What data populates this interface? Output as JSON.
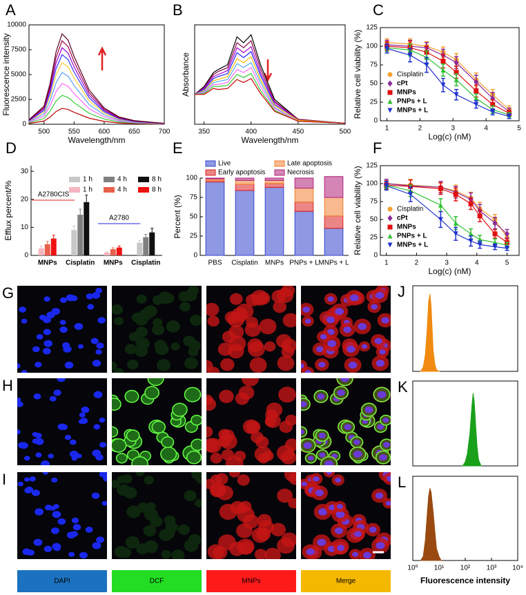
{
  "chart_data": [
    {
      "panel": "A",
      "type": "line",
      "x_label": "Wavelength/nm",
      "y_label": "Fluorescence intensity",
      "x": [
        475,
        500,
        510,
        520,
        530,
        540,
        550,
        575,
        600,
        625,
        650,
        700
      ],
      "series": [
        {
          "color": "#c00000",
          "values": [
            80,
            320,
            720,
            1280,
            1600,
            1488,
            1200,
            608,
            288,
            128,
            64,
            16
          ]
        },
        {
          "color": "#33cc33",
          "values": [
            145,
            580,
            1305,
            2320,
            2900,
            2697,
            2175,
            1102,
            522,
            232,
            116,
            29
          ]
        },
        {
          "color": "#ff66ff",
          "values": [
            205,
            820,
            1845,
            3280,
            4100,
            3813,
            3075,
            1558,
            738,
            328,
            164,
            41
          ]
        },
        {
          "color": "#5aa0ff",
          "values": [
            260,
            1040,
            2340,
            4160,
            5200,
            4836,
            3900,
            1976,
            936,
            416,
            208,
            52
          ]
        },
        {
          "color": "#ffcc33",
          "values": [
            310,
            1240,
            2790,
            4960,
            6200,
            5766,
            4650,
            2356,
            1116,
            496,
            248,
            62
          ]
        },
        {
          "color": "#3333ff",
          "values": [
            350,
            1400,
            3150,
            5600,
            7000,
            6510,
            5250,
            2660,
            1260,
            560,
            280,
            70
          ]
        },
        {
          "color": "#9900cc",
          "values": [
            385,
            1540,
            3465,
            6160,
            7700,
            7161,
            5775,
            2926,
            1386,
            616,
            308,
            77
          ]
        },
        {
          "color": "#990044",
          "values": [
            420,
            1680,
            3780,
            6720,
            8400,
            7812,
            6300,
            3192,
            1512,
            672,
            336,
            84
          ]
        },
        {
          "color": "#550022",
          "values": [
            455,
            1820,
            4095,
            7280,
            9100,
            8463,
            6825,
            3458,
            1638,
            728,
            364,
            91
          ]
        }
      ],
      "xlim": [
        475,
        700
      ],
      "xticks": [
        500,
        550,
        600,
        650,
        700
      ],
      "ylim": [
        0,
        10000
      ],
      "yticks": [
        0,
        2500,
        5000,
        7500,
        10000
      ]
    },
    {
      "panel": "B",
      "type": "line",
      "x_label": "Wavelength/nm",
      "y_label": "Absorbance",
      "x": [
        340,
        350,
        360,
        365,
        375,
        385,
        392,
        400,
        410,
        425,
        450,
        500
      ],
      "series": [
        {
          "color": "#000000",
          "values": [
            0.3,
            0.38,
            0.52,
            0.55,
            0.6,
            0.88,
            0.82,
            0.9,
            0.6,
            0.25,
            0.05,
            0.01
          ]
        },
        {
          "color": "#880044",
          "values": [
            0.3,
            0.37,
            0.5,
            0.53,
            0.57,
            0.82,
            0.77,
            0.84,
            0.56,
            0.23,
            0.05,
            0.01
          ]
        },
        {
          "color": "#aa00cc",
          "values": [
            0.3,
            0.36,
            0.48,
            0.5,
            0.54,
            0.77,
            0.72,
            0.78,
            0.52,
            0.22,
            0.04,
            0.01
          ]
        },
        {
          "color": "#2222ff",
          "values": [
            0.3,
            0.35,
            0.46,
            0.48,
            0.51,
            0.72,
            0.67,
            0.73,
            0.49,
            0.2,
            0.04,
            0.01
          ]
        },
        {
          "color": "#ffbb00",
          "values": [
            0.3,
            0.34,
            0.44,
            0.45,
            0.48,
            0.66,
            0.62,
            0.68,
            0.45,
            0.19,
            0.04,
            0.01
          ]
        },
        {
          "color": "#55aaff",
          "values": [
            0.3,
            0.33,
            0.42,
            0.43,
            0.45,
            0.61,
            0.57,
            0.62,
            0.42,
            0.17,
            0.03,
            0.01
          ]
        },
        {
          "color": "#ff66ff",
          "values": [
            0.3,
            0.32,
            0.4,
            0.4,
            0.42,
            0.55,
            0.52,
            0.57,
            0.38,
            0.16,
            0.03,
            0.01
          ]
        },
        {
          "color": "#33cc33",
          "values": [
            0.3,
            0.31,
            0.38,
            0.38,
            0.39,
            0.5,
            0.47,
            0.51,
            0.34,
            0.14,
            0.03,
            0.01
          ]
        },
        {
          "color": "#cc0000",
          "values": [
            0.3,
            0.3,
            0.36,
            0.35,
            0.36,
            0.45,
            0.42,
            0.46,
            0.31,
            0.13,
            0.03,
            0.01
          ]
        }
      ],
      "xlim": [
        340,
        500
      ],
      "xticks": [
        350,
        400,
        450,
        500
      ],
      "ylim": [
        0,
        1
      ]
    },
    {
      "panel": "C",
      "type": "scatter",
      "x_label": "Log(c) (nM)",
      "y_label": "Relative cell viability (%)",
      "x": [
        1,
        1.7,
        2.2,
        2.7,
        3.1,
        3.7,
        4.2,
        4.7
      ],
      "series": [
        {
          "name": "Cisplatin",
          "color": "#f5a030",
          "marker": "circle",
          "values": [
            105,
            103,
            100,
            92,
            82,
            55,
            35,
            15
          ],
          "errors": [
            5,
            7,
            6,
            7,
            8,
            9,
            7,
            5
          ]
        },
        {
          "name": "cPt",
          "color": "#8a2a9a",
          "marker": "diamond",
          "values": [
            102,
            100,
            98,
            88,
            78,
            52,
            30,
            12
          ],
          "errors": [
            6,
            8,
            7,
            8,
            8,
            9,
            8,
            5
          ]
        },
        {
          "name": "MNPs",
          "color": "#e01010",
          "marker": "square",
          "values": [
            100,
            98,
            92,
            80,
            65,
            40,
            22,
            10
          ],
          "errors": [
            6,
            9,
            8,
            9,
            8,
            8,
            6,
            4
          ]
        },
        {
          "name": "PNPs + L",
          "color": "#30c030",
          "marker": "triangle",
          "values": [
            98,
            95,
            85,
            68,
            55,
            30,
            15,
            8
          ],
          "errors": [
            5,
            8,
            9,
            8,
            8,
            6,
            5,
            3
          ]
        },
        {
          "name": "MNPs + L",
          "color": "#2030d0",
          "marker": "triangle-down",
          "values": [
            97,
            88,
            75,
            48,
            35,
            22,
            12,
            6
          ],
          "errors": [
            6,
            9,
            10,
            9,
            7,
            5,
            4,
            3
          ]
        }
      ],
      "xlim": [
        0.8,
        5
      ],
      "xticks": [
        1,
        2,
        3,
        4,
        5
      ],
      "ylim": [
        0,
        125
      ],
      "yticks": [
        0,
        25,
        50,
        75,
        100,
        125
      ]
    },
    {
      "panel": "D",
      "type": "bar",
      "y_label": "Efflux percent/%",
      "categories": [
        "MNPs",
        "Cisplatin",
        "MNPs",
        "Cisplatin"
      ],
      "groups": [
        {
          "label": "A2780CIS",
          "color": "#e02020"
        },
        {
          "label": "A2780",
          "color": "#2020dd"
        }
      ],
      "series": [
        {
          "name": "1 h",
          "color": "#c8c8c8",
          "values": [
            null,
            9,
            null,
            4.5
          ],
          "errors": [
            null,
            1.5,
            null,
            0.8
          ]
        },
        {
          "name": "4 h",
          "color": "#808080",
          "values": [
            null,
            14.5,
            null,
            6.5
          ],
          "errors": [
            null,
            2,
            null,
            1
          ]
        },
        {
          "name": "8 h",
          "color": "#111111",
          "values": [
            null,
            19,
            null,
            8.2
          ],
          "errors": [
            null,
            2.5,
            null,
            1.5
          ]
        },
        {
          "name": "1 h",
          "color": "#f4b6c0",
          "values": [
            2.5,
            null,
            1,
            null
          ],
          "errors": [
            0.8,
            null,
            0.3,
            null
          ]
        },
        {
          "name": "4 h",
          "color": "#e8604c",
          "values": [
            4,
            null,
            2.2,
            null
          ],
          "errors": [
            1,
            null,
            0.5,
            null
          ]
        },
        {
          "name": "8 h",
          "color": "#ee1111",
          "values": [
            6,
            null,
            2.8,
            null
          ],
          "errors": [
            1.2,
            null,
            0.6,
            null
          ]
        }
      ],
      "ylim": [
        0,
        32
      ],
      "yticks": [
        0,
        10,
        20,
        30
      ]
    },
    {
      "panel": "E",
      "type": "stacked-bar",
      "y_label": "Percent (%)",
      "categories": [
        "PBS",
        "Cisplatin",
        "MNPs",
        "PNPs + L",
        "MNPs + L"
      ],
      "series": [
        {
          "name": "Live",
          "color": "#3344cc",
          "values": [
            95,
            84,
            88,
            57,
            35
          ]
        },
        {
          "name": "Early apoptosis",
          "color": "#dd2222",
          "values": [
            2,
            8,
            5,
            12,
            16
          ]
        },
        {
          "name": "Late apoptosis",
          "color": "#f08030",
          "values": [
            2,
            5,
            4,
            18,
            24
          ]
        },
        {
          "name": "Necrosis",
          "color": "#b0207a",
          "values": [
            1,
            3,
            3,
            13,
            27
          ]
        }
      ],
      "ylim": [
        0,
        100
      ],
      "yticks": [
        0,
        25,
        50,
        75,
        100
      ]
    },
    {
      "panel": "F",
      "type": "scatter",
      "x_label": "Log(c) (nM)",
      "y_label": "Relative cell viability (%)",
      "x": [
        1,
        1.8,
        2.8,
        3.3,
        3.8,
        4.1,
        4.6,
        5
      ],
      "series": [
        {
          "name": "Cisplatin",
          "color": "#f5a030",
          "marker": "circle",
          "values": [
            100,
            98,
            95,
            90,
            80,
            65,
            50,
            25
          ],
          "errors": [
            6,
            8,
            7,
            8,
            8,
            9,
            7,
            6
          ]
        },
        {
          "name": "cPt",
          "color": "#8a2a9a",
          "marker": "diamond",
          "values": [
            100,
            97,
            95,
            88,
            78,
            62,
            45,
            30
          ],
          "errors": [
            6,
            8,
            8,
            8,
            9,
            9,
            8,
            6
          ]
        },
        {
          "name": "MNPs",
          "color": "#e01010",
          "marker": "square",
          "values": [
            98,
            96,
            93,
            85,
            72,
            55,
            30,
            18
          ],
          "errors": [
            6,
            9,
            8,
            9,
            8,
            8,
            6,
            5
          ]
        },
        {
          "name": "PNPs + L",
          "color": "#30c030",
          "marker": "triangle",
          "values": [
            98,
            90,
            70,
            45,
            30,
            22,
            18,
            14
          ],
          "errors": [
            5,
            8,
            9,
            9,
            7,
            6,
            5,
            4
          ]
        },
        {
          "name": "MNPs + L",
          "color": "#2030d0",
          "marker": "triangle-down",
          "values": [
            97,
            85,
            50,
            30,
            20,
            15,
            12,
            10
          ],
          "errors": [
            6,
            10,
            11,
            9,
            7,
            5,
            4,
            3
          ]
        }
      ],
      "xlim": [
        0.8,
        5.4
      ],
      "xticks": [
        1,
        2,
        3,
        4,
        5
      ],
      "ylim": [
        0,
        125
      ],
      "yticks": [
        0,
        25,
        50,
        75,
        100,
        125
      ]
    },
    {
      "panel": "J",
      "type": "area",
      "log_x": true,
      "color": "#f08a10",
      "x": [
        2,
        2.5,
        3,
        3.5,
        4,
        4.5,
        5,
        5.5,
        6,
        7,
        8,
        10
      ],
      "values": [
        0,
        5,
        20,
        50,
        85,
        95,
        80,
        50,
        25,
        8,
        2,
        0
      ],
      "xlim": [
        1,
        10000
      ],
      "ylim": [
        0,
        105
      ]
    },
    {
      "panel": "K",
      "type": "area",
      "log_x": true,
      "color": "#1aa01a",
      "x": [
        80,
        100,
        120,
        150,
        180,
        200,
        220,
        250,
        280,
        320,
        400
      ],
      "values": [
        0,
        5,
        15,
        40,
        75,
        90,
        80,
        50,
        25,
        8,
        0
      ],
      "xlim": [
        1,
        10000
      ],
      "ylim": [
        0,
        105
      ]
    },
    {
      "panel": "L",
      "type": "area",
      "log_x": true,
      "color": "#9a4a10",
      "x_label": "Fluorescence intensity",
      "x": [
        2,
        2.5,
        3,
        3.5,
        4,
        4.5,
        5,
        6,
        7,
        8,
        10,
        12
      ],
      "values": [
        0,
        5,
        25,
        55,
        80,
        90,
        85,
        60,
        35,
        15,
        5,
        0
      ],
      "xlim": [
        1,
        10000
      ],
      "ylim": [
        0,
        105
      ],
      "xticks": [
        {
          "value": 1,
          "label": "10⁰"
        },
        {
          "value": 10,
          "label": "10¹"
        },
        {
          "value": 100,
          "label": "10²"
        },
        {
          "value": 1000,
          "label": "10³"
        },
        {
          "value": 10000,
          "label": "10⁴"
        }
      ]
    }
  ],
  "image_panels": {
    "rows": [
      "G",
      "H",
      "I"
    ],
    "channels": [
      {
        "label": "DAPI",
        "color": "#1b72c0"
      },
      {
        "label": "DCF",
        "color": "#22dd22"
      },
      {
        "label": "MNPs",
        "color": "#ff1a1a"
      },
      {
        "label": "Merge",
        "color": "#f5b800"
      }
    ]
  }
}
